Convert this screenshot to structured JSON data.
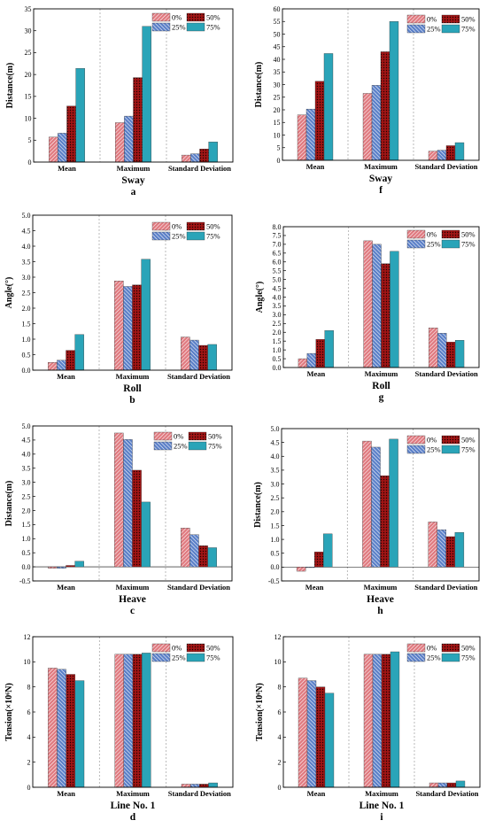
{
  "legend_labels": [
    "0%",
    "25%",
    "50%",
    "75%"
  ],
  "category_labels": [
    "Mean",
    "Maximum",
    "Standard Deviation"
  ],
  "colors": {
    "s0": "#e07a80",
    "s0_hatch": "#ffffff",
    "s1": "#5b80c8",
    "s1_hatch": "#ffffff",
    "s2": "#a11515",
    "s2_dots": "#200000",
    "s3": "#2aa4b8",
    "axis": "#000000",
    "divider": "#aaaaaa"
  },
  "chart_data": [
    {
      "type": "bar",
      "letter": "a",
      "xlabel": "Sway",
      "ylabel": "Distance(m)",
      "ylim": [
        0,
        35
      ],
      "ystep": 5,
      "decimals": 0,
      "categories": [
        "Mean",
        "Maximum",
        "Standard Deviation"
      ],
      "series": [
        {
          "name": "0%",
          "values": [
            5.7,
            9.0,
            1.6
          ]
        },
        {
          "name": "25%",
          "values": [
            6.6,
            10.5,
            1.9
          ]
        },
        {
          "name": "50%",
          "values": [
            12.8,
            19.3,
            3.0
          ]
        },
        {
          "name": "75%",
          "values": [
            21.4,
            31.0,
            4.6
          ]
        }
      ]
    },
    {
      "type": "bar",
      "letter": "f",
      "xlabel": "Sway",
      "ylabel": "Distance(m)",
      "ylim": [
        0,
        60
      ],
      "ystep": 5,
      "decimals": 0,
      "categories": [
        "Mean",
        "Maximum",
        "Standard Deviation"
      ],
      "series": [
        {
          "name": "0%",
          "values": [
            18.0,
            26.5,
            3.6
          ]
        },
        {
          "name": "25%",
          "values": [
            20.3,
            29.7,
            4.0
          ]
        },
        {
          "name": "50%",
          "values": [
            31.3,
            43.0,
            5.8
          ]
        },
        {
          "name": "75%",
          "values": [
            42.3,
            55.0,
            7.0
          ]
        }
      ]
    },
    {
      "type": "bar",
      "letter": "b",
      "xlabel": "Roll",
      "ylabel": "Angle(°)",
      "ylim": [
        0,
        5
      ],
      "ystep": 0.5,
      "decimals": 1,
      "categories": [
        "Mean",
        "Maximum",
        "Standard Deviation"
      ],
      "series": [
        {
          "name": "0%",
          "values": [
            0.25,
            2.88,
            1.07
          ]
        },
        {
          "name": "25%",
          "values": [
            0.32,
            2.7,
            0.97
          ]
        },
        {
          "name": "50%",
          "values": [
            0.64,
            2.75,
            0.8
          ]
        },
        {
          "name": "75%",
          "values": [
            1.15,
            3.58,
            0.83
          ]
        }
      ]
    },
    {
      "type": "bar",
      "letter": "g",
      "xlabel": "Roll",
      "ylabel": "Angle(°)",
      "ylim": [
        0,
        8
      ],
      "ystep": 0.5,
      "decimals": 1,
      "categories": [
        "Mean",
        "Maximum",
        "Standard Deviation"
      ],
      "series": [
        {
          "name": "0%",
          "values": [
            0.5,
            7.2,
            2.25
          ]
        },
        {
          "name": "25%",
          "values": [
            0.8,
            7.0,
            1.95
          ]
        },
        {
          "name": "50%",
          "values": [
            1.6,
            5.9,
            1.45
          ]
        },
        {
          "name": "75%",
          "values": [
            2.1,
            6.6,
            1.55
          ]
        }
      ]
    },
    {
      "type": "bar",
      "letter": "c",
      "xlabel": "Heave",
      "ylabel": "Distance(m)",
      "ylim": [
        -0.5,
        5
      ],
      "ystep": 0.5,
      "decimals": 1,
      "categories": [
        "Mean",
        "Maximum",
        "Standard Deviation"
      ],
      "series": [
        {
          "name": "0%",
          "values": [
            -0.05,
            4.75,
            1.38
          ]
        },
        {
          "name": "25%",
          "values": [
            -0.05,
            4.52,
            1.14
          ]
        },
        {
          "name": "50%",
          "values": [
            0.05,
            3.43,
            0.75
          ]
        },
        {
          "name": "75%",
          "values": [
            0.2,
            2.3,
            0.68
          ]
        }
      ]
    },
    {
      "type": "bar",
      "letter": "h",
      "xlabel": "Heave",
      "ylabel": "Distance(m)",
      "ylim": [
        -0.5,
        5
      ],
      "ystep": 0.5,
      "decimals": 1,
      "categories": [
        "Mean",
        "Maximum",
        "Standard Deviation"
      ],
      "series": [
        {
          "name": "0%",
          "values": [
            -0.15,
            4.55,
            1.63
          ]
        },
        {
          "name": "25%",
          "values": [
            0.0,
            4.33,
            1.35
          ]
        },
        {
          "name": "50%",
          "values": [
            0.55,
            3.3,
            1.1
          ]
        },
        {
          "name": "75%",
          "values": [
            1.2,
            4.62,
            1.25
          ]
        }
      ]
    },
    {
      "type": "bar",
      "letter": "d",
      "xlabel": "Line No. 1",
      "ylabel": "Tension(×10⁶N)",
      "ylim": [
        0,
        12
      ],
      "ystep": 2,
      "decimals": 0,
      "categories": [
        "Mean",
        "Maximum",
        "Standard Deviation"
      ],
      "series": [
        {
          "name": "0%",
          "values": [
            9.5,
            10.6,
            0.25
          ]
        },
        {
          "name": "25%",
          "values": [
            9.4,
            10.6,
            0.25
          ]
        },
        {
          "name": "50%",
          "values": [
            9.0,
            10.6,
            0.25
          ]
        },
        {
          "name": "75%",
          "values": [
            8.5,
            10.7,
            0.35
          ]
        }
      ]
    },
    {
      "type": "bar",
      "letter": "i",
      "xlabel": "Line No. 1",
      "ylabel": "Tension(×10⁶N)",
      "ylim": [
        0,
        12
      ],
      "ystep": 2,
      "decimals": 0,
      "categories": [
        "Mean",
        "Maximum",
        "Standard Deviation"
      ],
      "series": [
        {
          "name": "0%",
          "values": [
            8.7,
            10.6,
            0.35
          ]
        },
        {
          "name": "25%",
          "values": [
            8.5,
            10.6,
            0.35
          ]
        },
        {
          "name": "50%",
          "values": [
            8.0,
            10.6,
            0.35
          ]
        },
        {
          "name": "75%",
          "values": [
            7.5,
            10.8,
            0.5
          ]
        }
      ]
    }
  ]
}
